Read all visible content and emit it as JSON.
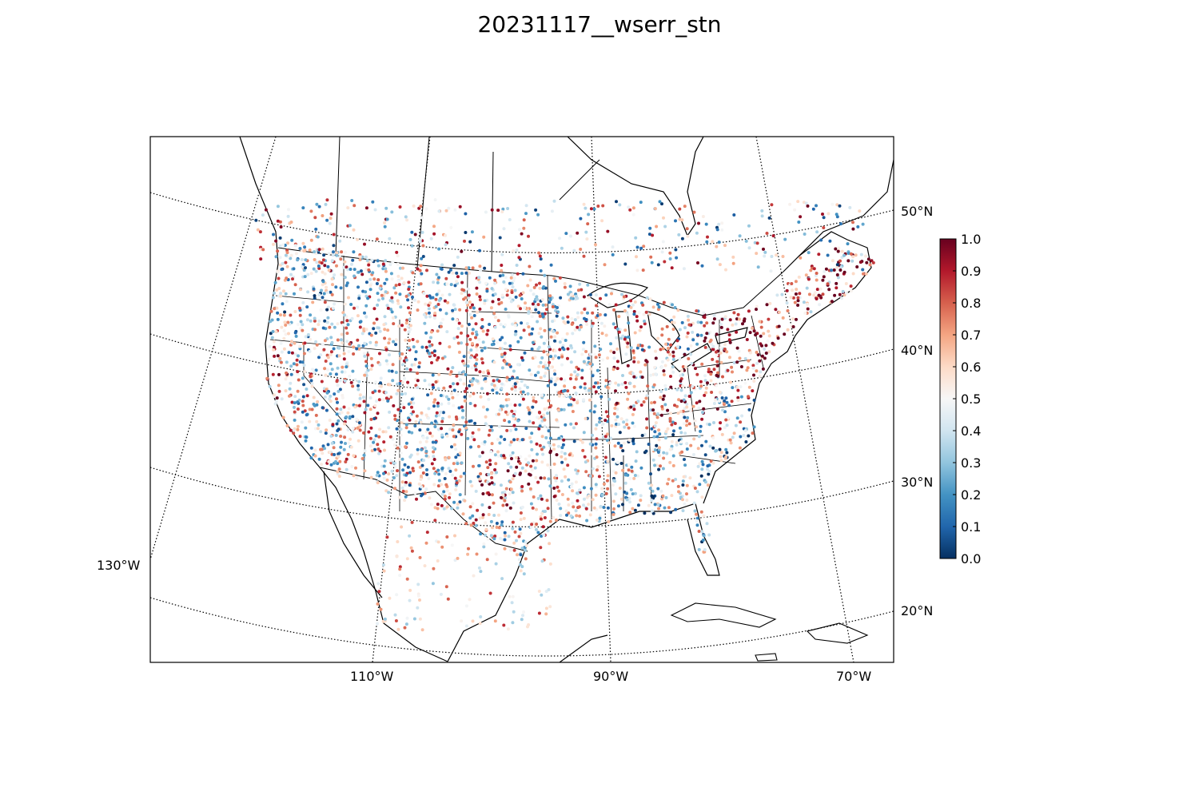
{
  "title": "20231117__wserr_stn",
  "map": {
    "projection": "lambert-conformal",
    "parallels": [
      {
        "lat": 50,
        "label": "50°N"
      },
      {
        "lat": 40,
        "label": "40°N"
      },
      {
        "lat": 30,
        "label": "30°N"
      },
      {
        "lat": 20,
        "label": "20°N"
      }
    ],
    "meridians": [
      {
        "lon": -130,
        "label": "130°W"
      },
      {
        "lon": -110,
        "label": "110°W"
      },
      {
        "lon": -90,
        "label": "90°W"
      },
      {
        "lon": -70,
        "label": "70°W"
      }
    ],
    "gridlines": "dotted",
    "features": [
      "coastlines",
      "country-borders",
      "state-borders",
      "lakes"
    ]
  },
  "colorbar": {
    "colormap": "RdBu_r",
    "range": [
      0.0,
      1.0
    ],
    "ticks": [
      "0.0",
      "0.1",
      "0.2",
      "0.3",
      "0.4",
      "0.5",
      "0.6",
      "0.7",
      "0.8",
      "0.9",
      "1.0"
    ],
    "colors": {
      "low": "#053061",
      "mid": "#f7f7f7",
      "high": "#67001f"
    }
  },
  "station_points": {
    "marker": "small-circle",
    "value_range": [
      0.0,
      1.0
    ],
    "high_value_regions": [
      "northeast",
      "ohio-valley",
      "california-coast",
      "texas-oklahoma"
    ],
    "low_value_regions": [
      "southeast",
      "pacific-northwest-interior"
    ]
  }
}
